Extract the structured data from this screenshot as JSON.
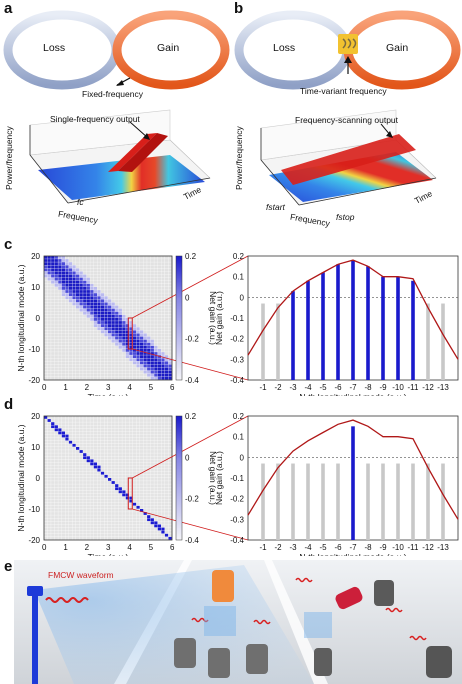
{
  "panels": {
    "a": {
      "letter": "a",
      "ring_left": "Loss",
      "ring_right": "Gain",
      "coupler_label": "Fixed-frequency",
      "output_label": "Single-frequency output",
      "zlabel": "Power/frequency",
      "xlabel": "Frequency",
      "ylabel": "Time",
      "fc_label": "fc"
    },
    "b": {
      "letter": "b",
      "ring_left": "Loss",
      "ring_right": "Gain",
      "coupler_label": "Time-variant frequency",
      "output_label": "Frequency-scanning output",
      "zlabel": "Power/frequency",
      "xlabel": "Frequency",
      "ylabel": "Time",
      "fstart_label": "fstart",
      "fstop_label": "fstop"
    },
    "c": {
      "letter": "c"
    },
    "d": {
      "letter": "d"
    },
    "e": {
      "letter": "e",
      "waveform_label": "FMCW waveform"
    }
  },
  "colors": {
    "loss_ring": "#9aa9c9",
    "gain_ring": "#f06a2a",
    "mode_blue": "#1a1acc",
    "curve_red": "#b01818",
    "grid_gray": "#c8c8c8"
  },
  "chart_data": [
    {
      "id": "c-left",
      "type": "heatmap",
      "xlabel": "Time (a.u.)",
      "ylabel": "N-th longitudinal mode (a.u.)",
      "colorbar_label": "Net gain (a.u.)",
      "xlim": [
        0,
        6
      ],
      "ylim": [
        -20,
        20
      ],
      "x_ticks": [
        "0",
        "1",
        "2",
        "3",
        "4",
        "5",
        "6"
      ],
      "y_ticks": [
        "20",
        "10",
        "0",
        "-10",
        "-20"
      ],
      "colorbar_ticks": [
        "0.2",
        "0",
        "-0.2",
        "-0.4"
      ],
      "pattern": "broad diagonal band of excited modes from mode 20 at t=0 to mode -20 at t=6"
    },
    {
      "id": "c-right",
      "type": "bar",
      "xlabel": "N-th longitudinal mode (a.u.)",
      "ylabel": "Net gain (a.u.)",
      "ylim": [
        -0.4,
        0.2
      ],
      "y_ticks": [
        "0.2",
        "0.1",
        "0",
        "-0.1",
        "-0.2",
        "-0.3",
        "-0.4"
      ],
      "categories": [
        "-1",
        "-2",
        "-3",
        "-4",
        "-5",
        "-6",
        "-7",
        "-8",
        "-9",
        "-10",
        "-11",
        "-12",
        "-13"
      ],
      "series": [
        {
          "values": [
            -0.4,
            -0.4,
            0.03,
            0.08,
            0.12,
            0.16,
            0.18,
            0.15,
            0.1,
            0.1,
            0.08,
            -0.4,
            -0.4
          ]
        }
      ],
      "gain_curve": [
        -0.28,
        -0.16,
        -0.05,
        0.03,
        0.08,
        0.12,
        0.16,
        0.18,
        0.15,
        0.1,
        0.1,
        0.09,
        -0.05,
        -0.18,
        -0.3
      ]
    },
    {
      "id": "d-left",
      "type": "heatmap",
      "xlabel": "Time (a.u.)",
      "ylabel": "N-th longitudinal mode (a.u.)",
      "colorbar_label": "Net gain (a.u.)",
      "xlim": [
        0,
        6
      ],
      "ylim": [
        -20,
        20
      ],
      "x_ticks": [
        "0",
        "1",
        "2",
        "3",
        "4",
        "5",
        "6"
      ],
      "y_ticks": [
        "20",
        "10",
        "0",
        "-10",
        "-20"
      ],
      "colorbar_ticks": [
        "0.2",
        "0",
        "-0.2",
        "-0.4"
      ],
      "pattern": "single narrow diagonal line from mode 20 at t=0 to mode -20 at t=6"
    },
    {
      "id": "d-right",
      "type": "bar",
      "xlabel": "N-th longitudinal mode (a.u.)",
      "ylabel": "Net gain (a.u.)",
      "ylim": [
        -0.4,
        0.2
      ],
      "y_ticks": [
        "0.2",
        "0.1",
        "0",
        "-0.1",
        "-0.2",
        "-0.3",
        "-0.4"
      ],
      "categories": [
        "-1",
        "-2",
        "-3",
        "-4",
        "-5",
        "-6",
        "-7",
        "-8",
        "-9",
        "-10",
        "-11",
        "-12",
        "-13"
      ],
      "series": [
        {
          "values": [
            -0.4,
            -0.4,
            -0.4,
            -0.4,
            -0.4,
            -0.4,
            0.15,
            -0.4,
            -0.4,
            -0.4,
            -0.4,
            -0.4,
            -0.4
          ]
        }
      ],
      "gain_curve": [
        -0.28,
        -0.16,
        -0.05,
        0.03,
        0.08,
        0.12,
        0.16,
        0.18,
        0.15,
        0.1,
        0.1,
        0.09,
        -0.05,
        -0.18,
        -0.3
      ]
    }
  ]
}
